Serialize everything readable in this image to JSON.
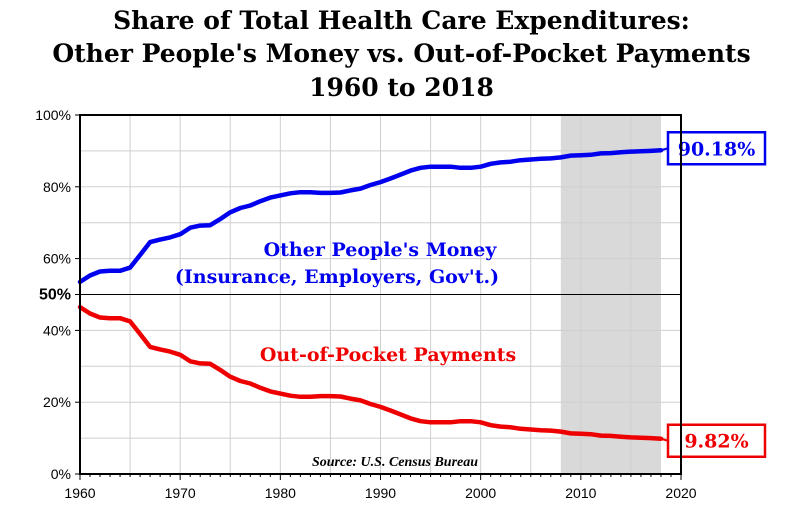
{
  "chart_data": {
    "type": "line",
    "title": [
      "Share of Total Health Care Expenditures:",
      "Other People's Money vs. Out-of-Pocket Payments",
      "1960 to 2018"
    ],
    "xlim": [
      1960,
      2020
    ],
    "ylim": [
      0,
      100
    ],
    "x_ticks": [
      1960,
      1970,
      1980,
      1990,
      2000,
      2010,
      2020
    ],
    "y_ticks": [
      {
        "value": 0,
        "label": "0%"
      },
      {
        "value": 20,
        "label": "20%"
      },
      {
        "value": 40,
        "label": "40%"
      },
      {
        "value": 50,
        "label": "50%"
      },
      {
        "value": 60,
        "label": "60%"
      },
      {
        "value": 80,
        "label": "80%"
      },
      {
        "value": 100,
        "label": "100%"
      }
    ],
    "reference_line": 50,
    "shaded_region": [
      2008,
      2018
    ],
    "series": [
      {
        "name": "Other People's Money",
        "label_lines": [
          "Other People's Money",
          "(Insurance, Employers, Gov't.)"
        ],
        "color": "#0000ee",
        "end_label": "90.18%",
        "x": [
          1960,
          1961,
          1962,
          1963,
          1964,
          1965,
          1966,
          1967,
          1968,
          1969,
          1970,
          1971,
          1972,
          1973,
          1974,
          1975,
          1976,
          1977,
          1978,
          1979,
          1980,
          1981,
          1982,
          1983,
          1984,
          1985,
          1986,
          1987,
          1988,
          1989,
          1990,
          1991,
          1992,
          1993,
          1994,
          1995,
          1996,
          1997,
          1998,
          1999,
          2000,
          2001,
          2002,
          2003,
          2004,
          2005,
          2006,
          2007,
          2008,
          2009,
          2010,
          2011,
          2012,
          2013,
          2014,
          2015,
          2016,
          2017,
          2018
        ],
        "values": [
          53.5,
          55.3,
          56.4,
          56.6,
          56.6,
          57.5,
          61.0,
          64.6,
          65.3,
          65.9,
          66.8,
          68.6,
          69.2,
          69.3,
          71.0,
          72.9,
          74.1,
          74.8,
          76.0,
          77.0,
          77.6,
          78.2,
          78.5,
          78.5,
          78.3,
          78.3,
          78.4,
          79.0,
          79.5,
          80.5,
          81.3,
          82.3,
          83.4,
          84.5,
          85.3,
          85.6,
          85.6,
          85.6,
          85.3,
          85.3,
          85.6,
          86.4,
          86.8,
          87.0,
          87.4,
          87.6,
          87.8,
          87.9,
          88.2,
          88.7,
          88.8,
          88.9,
          89.3,
          89.4,
          89.6,
          89.8,
          89.9,
          90.0,
          90.18
        ]
      },
      {
        "name": "Out-of-Pocket Payments",
        "label_lines": [
          "Out-of-Pocket Payments"
        ],
        "color": "#ee0000",
        "end_label": "9.82%",
        "x": [
          1960,
          1961,
          1962,
          1963,
          1964,
          1965,
          1966,
          1967,
          1968,
          1969,
          1970,
          1971,
          1972,
          1973,
          1974,
          1975,
          1976,
          1977,
          1978,
          1979,
          1980,
          1981,
          1982,
          1983,
          1984,
          1985,
          1986,
          1987,
          1988,
          1989,
          1990,
          1991,
          1992,
          1993,
          1994,
          1995,
          1996,
          1997,
          1998,
          1999,
          2000,
          2001,
          2002,
          2003,
          2004,
          2005,
          2006,
          2007,
          2008,
          2009,
          2010,
          2011,
          2012,
          2013,
          2014,
          2015,
          2016,
          2017,
          2018
        ],
        "values": [
          46.5,
          44.7,
          43.6,
          43.4,
          43.4,
          42.5,
          39.0,
          35.4,
          34.7,
          34.1,
          33.2,
          31.4,
          30.8,
          30.7,
          29.0,
          27.1,
          25.9,
          25.2,
          24.0,
          23.0,
          22.4,
          21.8,
          21.5,
          21.5,
          21.7,
          21.7,
          21.6,
          21.0,
          20.5,
          19.5,
          18.7,
          17.7,
          16.6,
          15.5,
          14.7,
          14.4,
          14.4,
          14.4,
          14.7,
          14.7,
          14.4,
          13.6,
          13.2,
          13.0,
          12.6,
          12.4,
          12.2,
          12.1,
          11.8,
          11.3,
          11.2,
          11.1,
          10.7,
          10.6,
          10.4,
          10.2,
          10.1,
          10.0,
          9.82
        ]
      }
    ],
    "annotation": "Source: U.S. Census Bureau"
  }
}
